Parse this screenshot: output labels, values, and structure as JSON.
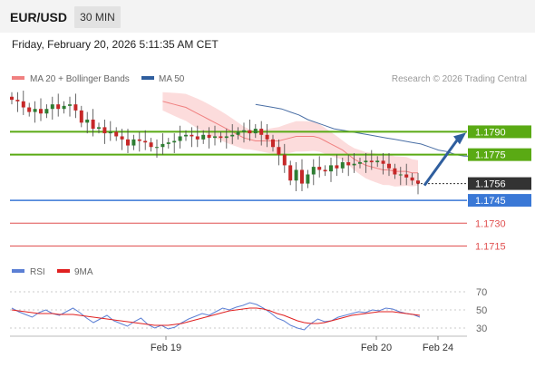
{
  "header": {
    "symbol": "EUR/USD",
    "timeframe": "30 MIN",
    "datetime": "Friday, February 20, 2026 5:11:35 AM CET"
  },
  "legend": {
    "ma20": "MA 20 + Bollinger Bands",
    "ma50": "MA 50",
    "source": "Research © 2026 Trading Central",
    "rsi": "RSI",
    "rsi_ma": "9MA"
  },
  "colors": {
    "candle_up": "#2e7d32",
    "candle_down": "#c62828",
    "bollinger": "#fbd0d0",
    "ma20": "#f08080",
    "ma50": "#4a6fa5",
    "green_level": "#5aaa14",
    "blue_level": "#3a78d6",
    "red_level": "#e05050",
    "last_price": "#333333",
    "rsi": "#5b7fd4",
    "rsi_ma": "#e02020"
  },
  "chart_data": {
    "type": "candlestick",
    "ylim": [
      1.1704,
      1.182
    ],
    "x_ticks": [
      "Feb 19",
      "Feb 20",
      "Feb 24"
    ],
    "series": [
      {
        "name": "EUR/USD",
        "close": [
          1.1811,
          1.181,
          1.1806,
          1.1803,
          1.1805,
          1.1802,
          1.1805,
          1.1808,
          1.1805,
          1.1807,
          1.1808,
          1.1804,
          1.1796,
          1.1798,
          1.1792,
          1.1793,
          1.1789,
          1.179,
          1.1787,
          1.1785,
          1.1781,
          1.1785,
          1.1784,
          1.1783,
          1.178,
          1.178,
          1.1782,
          1.1783,
          1.1784,
          1.1787,
          1.1788,
          1.1787,
          1.1785,
          1.1788,
          1.1786,
          1.1787,
          1.1786,
          1.1787,
          1.1788,
          1.179,
          1.1791,
          1.1789,
          1.1792,
          1.1788,
          1.1785,
          1.178,
          1.1775,
          1.1768,
          1.1758,
          1.1765,
          1.1756,
          1.1762,
          1.1767,
          1.1765,
          1.1764,
          1.1768,
          1.1766,
          1.177,
          1.1768,
          1.1769,
          1.177,
          1.1771,
          1.177,
          1.1771,
          1.1769,
          1.1766,
          1.1762,
          1.1762,
          1.176,
          1.1758,
          1.1756
        ]
      },
      {
        "name": "MA 20",
        "values": [
          1.181,
          1.1809,
          1.1808,
          1.1807,
          1.1806,
          1.1804,
          1.1802,
          1.18,
          1.1798,
          1.1796,
          1.1794,
          1.1792,
          1.179,
          1.1788,
          1.1786,
          1.1785,
          1.1784,
          1.1784,
          1.1784,
          1.1784,
          1.1784,
          1.1785,
          1.1786,
          1.1787,
          1.1787,
          1.1787,
          1.1787,
          1.1786,
          1.1784,
          1.1782,
          1.178,
          1.1778,
          1.1775,
          1.1772,
          1.177,
          1.1768,
          1.1767,
          1.1766,
          1.1765,
          1.1765,
          1.1764,
          1.1764,
          1.1764,
          1.1763,
          1.1763
        ]
      },
      {
        "name": "MA 50",
        "values": [
          1.1808,
          1.1807,
          1.1806,
          1.1805,
          1.1803,
          1.1801,
          1.1798,
          1.1796,
          1.1794,
          1.1792,
          1.1791,
          1.179,
          1.1789,
          1.1788,
          1.1787,
          1.1786,
          1.1785,
          1.1784,
          1.1783,
          1.1782,
          1.178,
          1.1778,
          1.1777,
          1.1775,
          1.1774,
          1.1774,
          1.1773,
          1.1773,
          1.1772
        ]
      }
    ],
    "levels": [
      {
        "value": 1.179,
        "label": "1.1790",
        "kind": "resistance"
      },
      {
        "value": 1.1775,
        "label": "1.1775",
        "kind": "resistance"
      },
      {
        "value": 1.1756,
        "label": "1.1756",
        "kind": "last"
      },
      {
        "value": 1.1745,
        "label": "1.1745",
        "kind": "pivot"
      },
      {
        "value": 1.173,
        "label": "1.1730",
        "kind": "support"
      },
      {
        "value": 1.1715,
        "label": "1.1715",
        "kind": "support"
      }
    ],
    "rsi": {
      "ylim": [
        20,
        80
      ],
      "ticks": [
        "70",
        "50",
        "30"
      ],
      "rsi_values": [
        52,
        48,
        45,
        42,
        47,
        50,
        46,
        44,
        48,
        52,
        47,
        41,
        36,
        40,
        44,
        38,
        35,
        32,
        37,
        41,
        34,
        30,
        33,
        29,
        31,
        36,
        40,
        43,
        46,
        44,
        48,
        52,
        50,
        53,
        55,
        58,
        56,
        52,
        47,
        41,
        38,
        33,
        30,
        28,
        35,
        40,
        37,
        38,
        42,
        44,
        46,
        48,
        47,
        50,
        49,
        52,
        51,
        48,
        46,
        45,
        42
      ],
      "ma_values": [
        50,
        49,
        48,
        47,
        46,
        46,
        46,
        45,
        45,
        45,
        44,
        43,
        42,
        41,
        40,
        39,
        38,
        37,
        36,
        35,
        34,
        33,
        33,
        33,
        34,
        35,
        37,
        39,
        41,
        43,
        45,
        47,
        49,
        50,
        51,
        52,
        52,
        51,
        49,
        46,
        44,
        41,
        38,
        36,
        35,
        35,
        36,
        38,
        40,
        42,
        44,
        45,
        46,
        47,
        48,
        48,
        48,
        47,
        46,
        45,
        44
      ]
    }
  }
}
